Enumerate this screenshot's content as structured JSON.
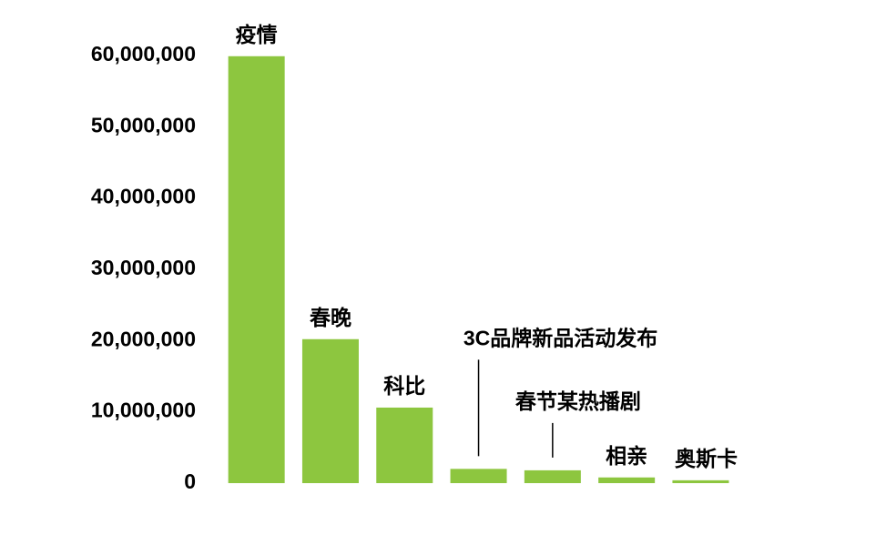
{
  "chart_data": {
    "type": "bar",
    "categories": [
      "疫情",
      "春晚",
      "科比",
      "3C品牌新品活动发布",
      "春节某热播剧",
      "相亲",
      "奥斯卡"
    ],
    "values": [
      59900000,
      20200000,
      10600000,
      2000000,
      1800000,
      800000,
      400000
    ],
    "color": "#8dc63f",
    "ylim": [
      0,
      60000000
    ],
    "yticks": [
      0,
      {
        "value": 10000000,
        "label": "10,000,000"
      },
      {
        "value": 20000000,
        "label": "20,000,000"
      },
      {
        "value": 30000000,
        "label": "30,000,000"
      },
      {
        "value": 40000000,
        "label": "40,000,000"
      },
      {
        "value": 50000000,
        "label": "50,000,000"
      },
      {
        "value": 60000000,
        "label": "60,000,000"
      }
    ]
  }
}
